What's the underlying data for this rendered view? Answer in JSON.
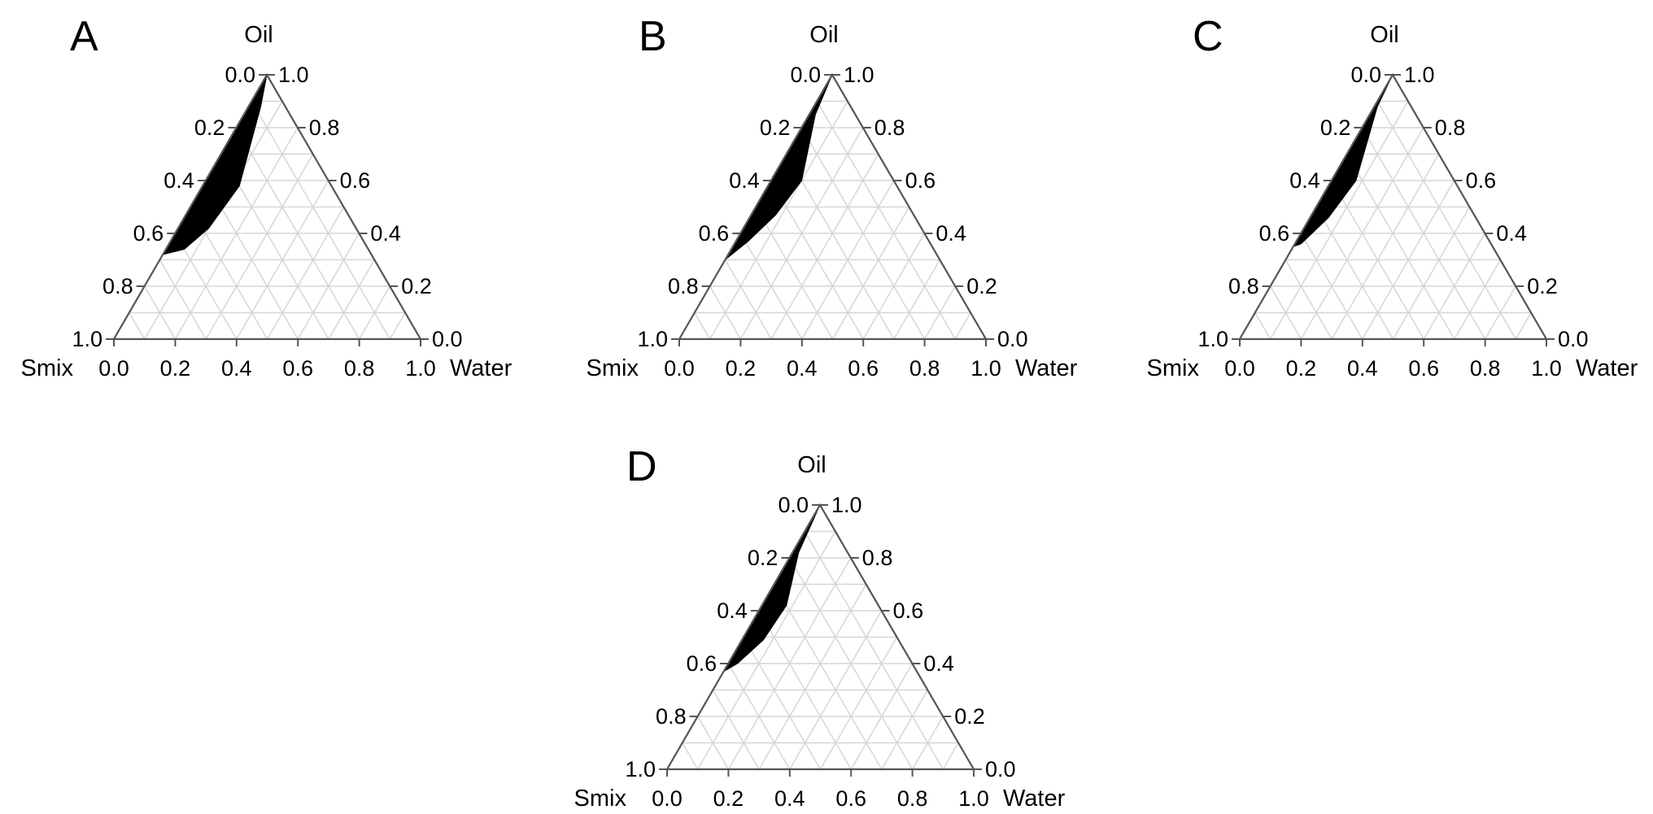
{
  "chart_data": [
    {
      "type": "ternary",
      "panel_label": "A",
      "axes": {
        "top": "Oil",
        "left": "Smix",
        "right": "Water"
      },
      "ticks": [
        "0.0",
        "0.2",
        "0.4",
        "0.6",
        "0.8",
        "1.0"
      ],
      "grid": true,
      "region_color": "#000000",
      "region": {
        "name": "",
        "points": [
          {
            "oil": 1.0,
            "water": 0.0,
            "smix": 0.0
          },
          {
            "oil": 0.88,
            "water": 0.04,
            "smix": 0.08
          },
          {
            "oil": 0.58,
            "water": 0.12,
            "smix": 0.3
          },
          {
            "oil": 0.42,
            "water": 0.1,
            "smix": 0.48
          },
          {
            "oil": 0.34,
            "water": 0.06,
            "smix": 0.6
          },
          {
            "oil": 0.32,
            "water": 0.0,
            "smix": 0.68
          },
          {
            "oil": 0.78,
            "water": 0.0,
            "smix": 0.22
          }
        ]
      }
    },
    {
      "type": "ternary",
      "panel_label": "B",
      "axes": {
        "top": "Oil",
        "left": "Smix",
        "right": "Water"
      },
      "ticks": [
        "0.0",
        "0.2",
        "0.4",
        "0.6",
        "0.8",
        "1.0"
      ],
      "grid": true,
      "region_color": "#000000",
      "region": {
        "name": "",
        "points": [
          {
            "oil": 1.0,
            "water": 0.0,
            "smix": 0.0
          },
          {
            "oil": 0.85,
            "water": 0.02,
            "smix": 0.13
          },
          {
            "oil": 0.6,
            "water": 0.1,
            "smix": 0.3
          },
          {
            "oil": 0.47,
            "water": 0.08,
            "smix": 0.45
          },
          {
            "oil": 0.37,
            "water": 0.04,
            "smix": 0.59
          },
          {
            "oil": 0.3,
            "water": 0.0,
            "smix": 0.7
          },
          {
            "oil": 0.78,
            "water": 0.0,
            "smix": 0.22
          }
        ]
      }
    },
    {
      "type": "ternary",
      "panel_label": "C",
      "axes": {
        "top": "Oil",
        "left": "Smix",
        "right": "Water"
      },
      "ticks": [
        "0.0",
        "0.2",
        "0.4",
        "0.6",
        "0.8",
        "1.0"
      ],
      "grid": true,
      "region_color": "#000000",
      "region": {
        "name": "",
        "points": [
          {
            "oil": 1.0,
            "water": 0.0,
            "smix": 0.0
          },
          {
            "oil": 0.88,
            "water": 0.01,
            "smix": 0.11
          },
          {
            "oil": 0.6,
            "water": 0.08,
            "smix": 0.32
          },
          {
            "oil": 0.46,
            "water": 0.06,
            "smix": 0.48
          },
          {
            "oil": 0.36,
            "water": 0.02,
            "smix": 0.62
          },
          {
            "oil": 0.35,
            "water": 0.0,
            "smix": 0.65
          },
          {
            "oil": 0.8,
            "water": 0.0,
            "smix": 0.2
          }
        ]
      }
    },
    {
      "type": "ternary",
      "panel_label": "D",
      "axes": {
        "top": "Oil",
        "left": "Smix",
        "right": "Water"
      },
      "ticks": [
        "0.0",
        "0.2",
        "0.4",
        "0.6",
        "0.8",
        "1.0"
      ],
      "grid": true,
      "region_color": "#000000",
      "region": {
        "name": "",
        "points": [
          {
            "oil": 1.0,
            "water": 0.0,
            "smix": 0.0
          },
          {
            "oil": 0.82,
            "water": 0.02,
            "smix": 0.16
          },
          {
            "oil": 0.62,
            "water": 0.08,
            "smix": 0.3
          },
          {
            "oil": 0.49,
            "water": 0.07,
            "smix": 0.44
          },
          {
            "oil": 0.4,
            "water": 0.03,
            "smix": 0.57
          },
          {
            "oil": 0.37,
            "water": 0.0,
            "smix": 0.63
          },
          {
            "oil": 0.78,
            "water": 0.0,
            "smix": 0.22
          }
        ]
      }
    }
  ]
}
